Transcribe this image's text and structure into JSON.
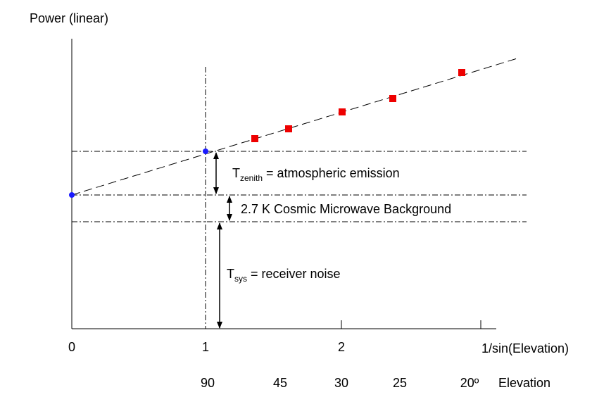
{
  "y_axis_label": "Power (linear)",
  "x_axis": {
    "label": "1/sin(Elevation)",
    "ticks": [
      "0",
      "1",
      "2"
    ]
  },
  "elevation_axis": {
    "label": "Elevation",
    "ticks": [
      "90",
      "45",
      "30",
      "25",
      "20º"
    ]
  },
  "annotations": {
    "zenith": {
      "symbol": "T",
      "subscript": "zenith",
      "text": "= atmospheric emission"
    },
    "cmb": {
      "text": "2.7 K  Cosmic Microwave Background"
    },
    "sys": {
      "symbol": "T",
      "subscript": "sys",
      "text": "= receiver noise"
    }
  }
}
